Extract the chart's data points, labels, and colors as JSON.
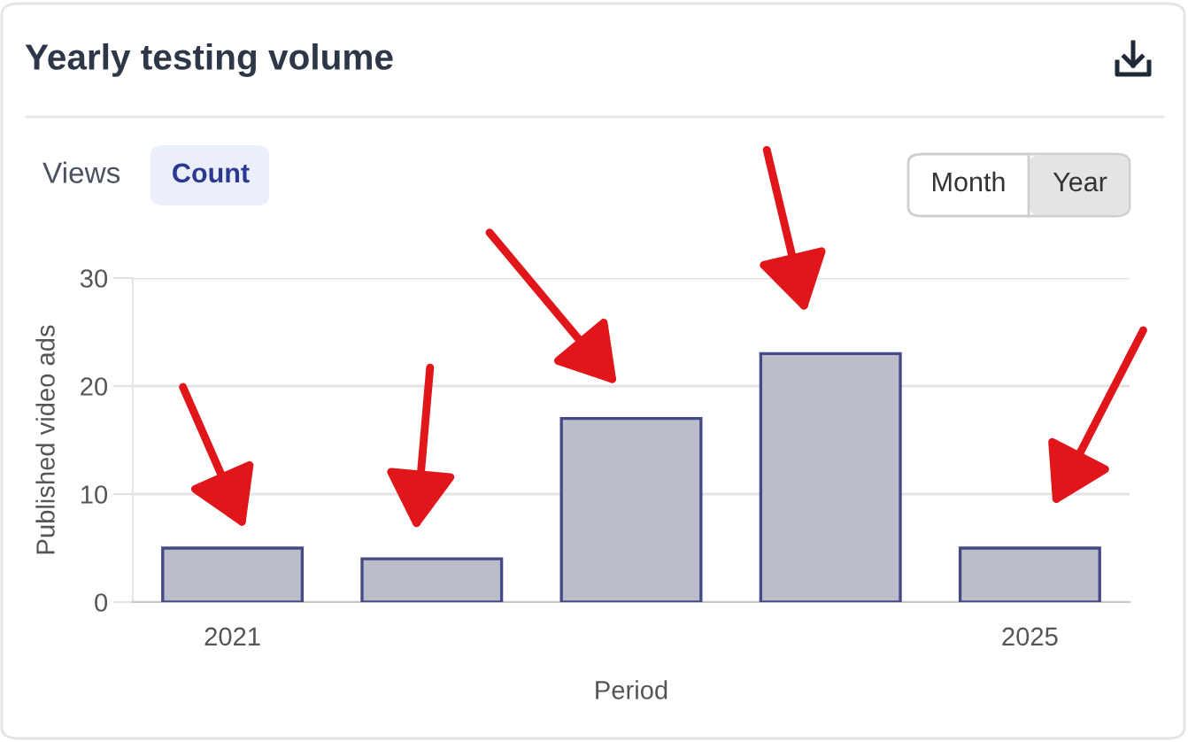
{
  "chart_data": {
    "type": "bar",
    "title": "Yearly testing volume",
    "xlabel": "Period",
    "ylabel": "Published video ads",
    "categories": [
      "2021",
      null,
      null,
      null,
      "2025"
    ],
    "values": [
      5,
      4,
      17,
      23,
      5
    ],
    "color": "#bcbdcb",
    "ylim": [
      0,
      30
    ],
    "yticks": [
      0,
      10,
      20,
      30
    ],
    "grid": "y",
    "annotations": [
      "Views",
      "Count",
      "Month",
      "Year"
    ]
  }
}
